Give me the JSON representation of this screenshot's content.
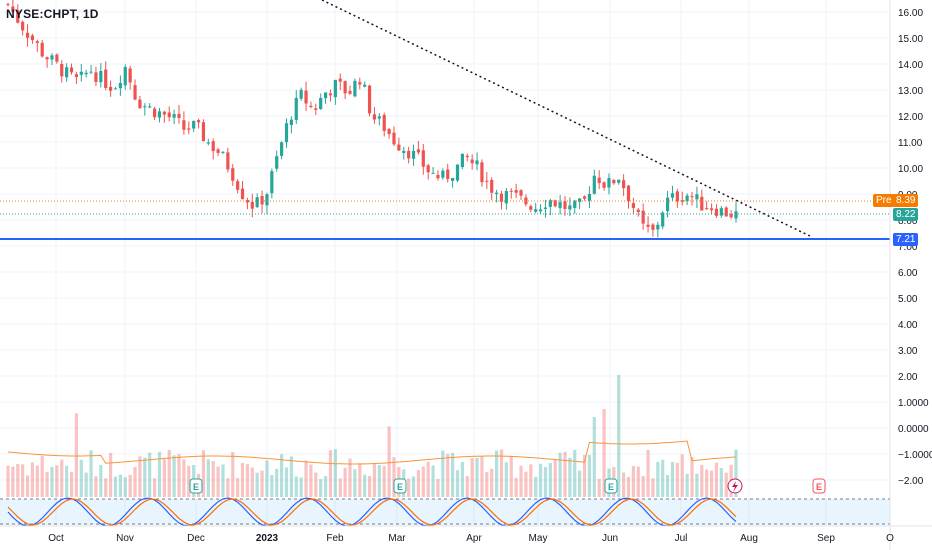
{
  "symbol_label": "NYSE:CHPT, 1D",
  "price_axis": {
    "ticks": [
      "16.00",
      "15.00",
      "14.00",
      "13.00",
      "12.00",
      "11.00",
      "10.00",
      "9.00",
      "8.00",
      "7.00",
      "6.00",
      "5.00",
      "4.00",
      "3.00",
      "2.00",
      "1.0000",
      "0.0000",
      "−1.0000",
      "−2.00"
    ]
  },
  "time_axis": {
    "labels": [
      "Oct",
      "Nov",
      "Dec",
      "2023",
      "Feb",
      "Mar",
      "Apr",
      "May",
      "Jun",
      "Jul",
      "Aug",
      "Sep",
      "O"
    ]
  },
  "price_tags": {
    "pre_label": "Pre",
    "pre_value": "8.39",
    "last_value": "8.22",
    "level_value": "7.21"
  },
  "earnings_markers": [
    "E",
    "E",
    "E",
    "E"
  ],
  "dividend_marker_icon": "lightning-icon",
  "colors": {
    "up": "#26a69a",
    "down": "#ef5350",
    "level_line": "#2962ff",
    "pre_tag": "#f57c00",
    "volume_ma": "#f7953b",
    "stoch_k": "#2962ff",
    "stoch_d": "#ff6d00"
  },
  "chart_data": {
    "type": "candlestick",
    "series": [
      {
        "name": "price",
        "values": [
          16.3,
          15.6,
          15.0,
          14.4,
          14.0,
          13.6,
          13.3,
          13.8,
          13.4,
          13.1,
          13.9,
          12.6,
          12.3,
          12.1,
          11.9,
          11.5,
          11.6,
          11.0,
          10.6,
          9.9,
          9.0,
          8.5,
          9.0,
          10.5,
          12.0,
          12.8,
          12.2,
          12.9,
          13.2,
          12.9,
          13.5,
          12.0,
          11.6,
          11.0,
          10.7,
          10.3,
          9.8,
          9.6,
          9.9,
          10.4,
          10.0,
          9.3,
          9.0,
          8.9,
          8.7,
          8.5,
          8.8,
          8.6,
          8.4,
          8.6,
          9.8,
          9.3,
          9.7,
          8.8,
          7.7,
          7.5,
          8.7,
          8.9,
          9.0,
          8.6,
          8.5,
          8.3,
          8.2
        ]
      }
    ],
    "ylim": [
      -2.5,
      16.5
    ],
    "reference_level": 7.21,
    "trendline": "descending dotted resistance line from upper left to early September",
    "volume_bars": true,
    "stochastic_pane": true
  }
}
